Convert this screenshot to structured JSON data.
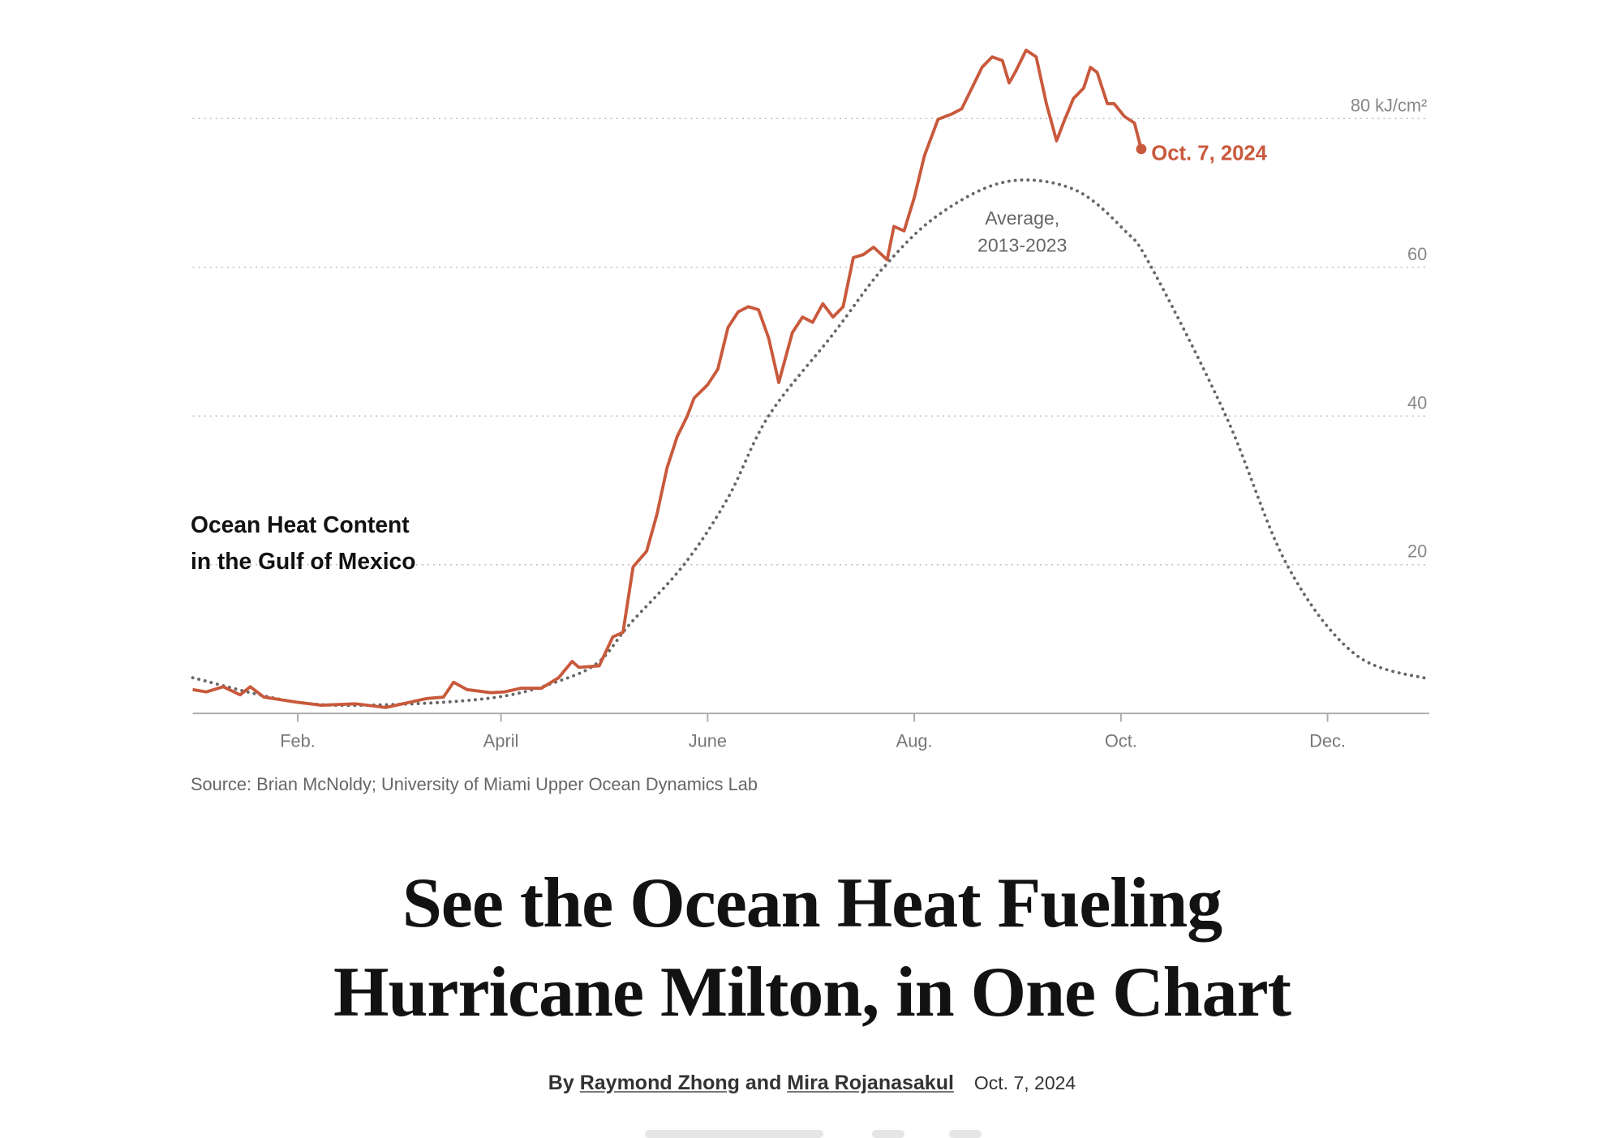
{
  "chart_data": {
    "type": "line",
    "title": "Ocean Heat Content in the Gulf of Mexico",
    "title_lines": [
      "Ocean Heat Content",
      "in the Gulf of Mexico"
    ],
    "x_unit": "day of year",
    "xlim": [
      1,
      366
    ],
    "ylim": [
      0,
      90
    ],
    "y_ticks": [
      {
        "value": 80,
        "label": "80 kJ/cm²"
      },
      {
        "value": 60,
        "label": "60"
      },
      {
        "value": 40,
        "label": "40"
      },
      {
        "value": 20,
        "label": "20"
      }
    ],
    "x_ticks": [
      {
        "day": 32,
        "label": "Feb."
      },
      {
        "day": 92,
        "label": "April"
      },
      {
        "day": 153,
        "label": "June"
      },
      {
        "day": 214,
        "label": "Aug."
      },
      {
        "day": 275,
        "label": "Oct."
      },
      {
        "day": 336,
        "label": "Dec."
      }
    ],
    "grid": "horizontal dotted",
    "series": [
      {
        "name": "Oct. 7, 2024",
        "color": "#c9593c",
        "points": [
          [
            1,
            3.2
          ],
          [
            5,
            2.9
          ],
          [
            10,
            3.6
          ],
          [
            15,
            2.5
          ],
          [
            18,
            3.6
          ],
          [
            22,
            2.2
          ],
          [
            32,
            1.5
          ],
          [
            39,
            1.1
          ],
          [
            49,
            1.3
          ],
          [
            58,
            0.8
          ],
          [
            64,
            1.4
          ],
          [
            70,
            2.0
          ],
          [
            75,
            2.2
          ],
          [
            78,
            4.2
          ],
          [
            82,
            3.2
          ],
          [
            89,
            2.8
          ],
          [
            93,
            2.9
          ],
          [
            98,
            3.4
          ],
          [
            104,
            3.4
          ],
          [
            109,
            4.8
          ],
          [
            113,
            7.0
          ],
          [
            115,
            6.2
          ],
          [
            121,
            6.4
          ],
          [
            125,
            10.3
          ],
          [
            128,
            10.9
          ],
          [
            131,
            19.7
          ],
          [
            135,
            21.8
          ],
          [
            138,
            26.7
          ],
          [
            141,
            33
          ],
          [
            144,
            37.2
          ],
          [
            147,
            40
          ],
          [
            149,
            42.4
          ],
          [
            153,
            44.2
          ],
          [
            156,
            46.3
          ],
          [
            159,
            51.9
          ],
          [
            162,
            54
          ],
          [
            165,
            54.7
          ],
          [
            168,
            54.3
          ],
          [
            171,
            50.5
          ],
          [
            174,
            44.5
          ],
          [
            178,
            51.2
          ],
          [
            181,
            53.3
          ],
          [
            184,
            52.6
          ],
          [
            187,
            55.1
          ],
          [
            190,
            53.3
          ],
          [
            193,
            54.7
          ],
          [
            196,
            61.3
          ],
          [
            199,
            61.7
          ],
          [
            202,
            62.7
          ],
          [
            206,
            61
          ],
          [
            208,
            65.5
          ],
          [
            211,
            64.9
          ],
          [
            214,
            69.4
          ],
          [
            217,
            75
          ],
          [
            221,
            79.9
          ],
          [
            225,
            80.6
          ],
          [
            228,
            81.3
          ],
          [
            231,
            84.1
          ],
          [
            234,
            86.9
          ],
          [
            237,
            88.3
          ],
          [
            240,
            87.8
          ],
          [
            242,
            84.8
          ],
          [
            244,
            86.4
          ],
          [
            247,
            89.2
          ],
          [
            250,
            88.3
          ],
          [
            253,
            82
          ],
          [
            256,
            77
          ],
          [
            258,
            79.4
          ],
          [
            261,
            82.7
          ],
          [
            264,
            84.1
          ],
          [
            266,
            86.9
          ],
          [
            268,
            86.2
          ],
          [
            271,
            82
          ],
          [
            273,
            82
          ],
          [
            276,
            80.3
          ],
          [
            279,
            79.4
          ],
          [
            281,
            75.9
          ]
        ]
      },
      {
        "name": "Average, 2013-2023",
        "name_lines": [
          "Average,",
          "2013-2023"
        ],
        "color": "#666666",
        "style": "dotted",
        "points": [
          [
            1,
            4.8
          ],
          [
            32,
            1.5
          ],
          [
            60,
            1.2
          ],
          [
            91,
            2.2
          ],
          [
            110,
            4.5
          ],
          [
            121,
            7
          ],
          [
            130,
            12
          ],
          [
            146,
            20
          ],
          [
            159,
            29
          ],
          [
            171,
            40
          ],
          [
            190,
            51
          ],
          [
            205,
            60
          ],
          [
            221,
            67
          ],
          [
            241,
            71.5
          ],
          [
            261,
            70.5
          ],
          [
            276,
            65
          ],
          [
            284,
            60
          ],
          [
            306,
            40
          ],
          [
            324,
            20
          ],
          [
            344,
            8
          ],
          [
            366,
            4.6
          ]
        ]
      }
    ],
    "other_years_color": "#e8e8e8",
    "source": "Source: Brian McNoldy; University of Miami Upper Ocean Dynamics Lab"
  },
  "article": {
    "headline_lines": [
      "See the Ocean Heat Fueling",
      "Hurricane Milton, in One Chart"
    ],
    "by": "By",
    "author1": "Raymond Zhong",
    "and": "and",
    "author2": "Mira Rojanasakul",
    "date": "Oct. 7, 2024"
  }
}
